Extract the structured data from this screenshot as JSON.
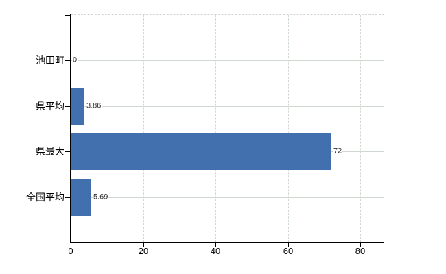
{
  "chart_data": {
    "type": "bar",
    "orientation": "horizontal",
    "title": "",
    "xlabel": "",
    "ylabel": "",
    "categories": [
      "池田町",
      "県平均",
      "県最大",
      "全国平均"
    ],
    "values": [
      0,
      3.86,
      72,
      5.69
    ],
    "value_labels": [
      "0",
      "3.86",
      "72",
      "5.69"
    ],
    "x_ticks": [
      0,
      20,
      40,
      60,
      80
    ],
    "x_tick_labels": [
      "0",
      "20",
      "40",
      "60",
      "80"
    ],
    "xlim": [
      0,
      86.6
    ],
    "legend": "none",
    "grid": {
      "vertical_dashed_at": [
        20,
        40,
        60,
        80
      ],
      "horizontal_solid_at_each_category": true,
      "top_border_dashed": true
    },
    "colors": {
      "bar": "#4270ae",
      "grid": "#d1d7d1",
      "axis": "#000000",
      "value_text": "#333333",
      "label_text": "#000000",
      "background": "#ffffff"
    }
  }
}
